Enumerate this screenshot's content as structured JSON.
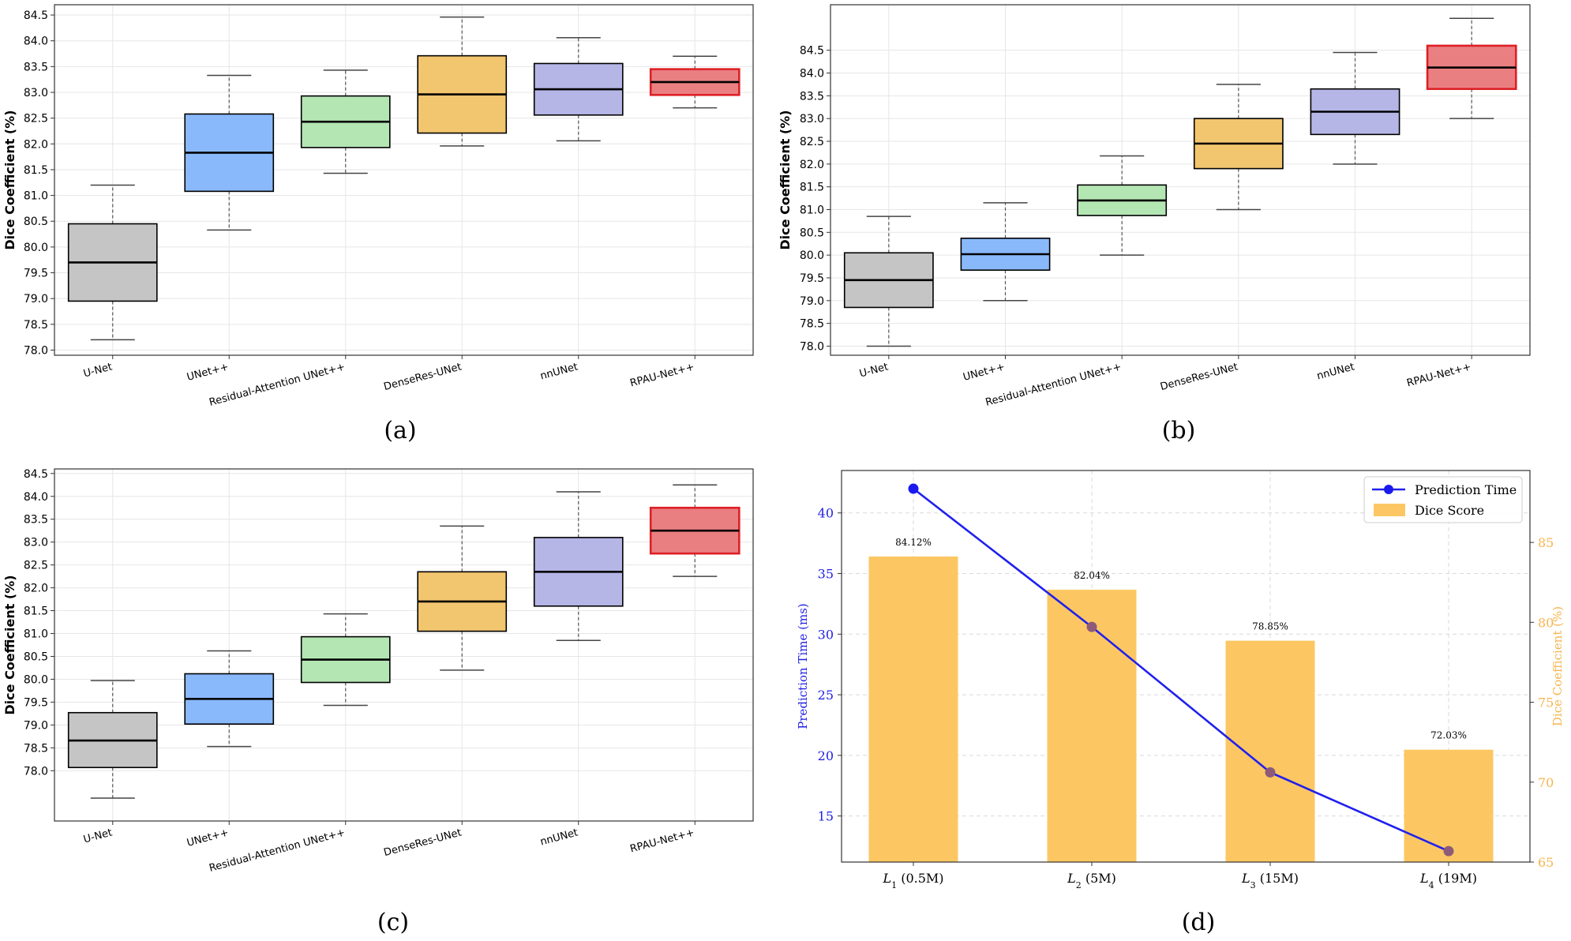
{
  "chart_data": [
    {
      "type": "box",
      "caption": "(a)",
      "ylabel": "Dice Coefficient (%)",
      "ylim": [
        77.9,
        84.7
      ],
      "yticks": [
        78.0,
        78.5,
        79.0,
        79.5,
        80.0,
        80.5,
        81.0,
        81.5,
        82.0,
        82.5,
        83.0,
        83.5,
        84.0,
        84.5
      ],
      "yticklabels": [
        "78.0",
        "78.5",
        "79.0",
        "79.5",
        "80.0",
        "80.5",
        "81.0",
        "81.5",
        "82.0",
        "82.5",
        "83.0",
        "83.5",
        "84.0",
        "84.5"
      ],
      "grid": true,
      "categories": [
        "U-Net",
        "UNet++",
        "Residual-Attention UNet++",
        "DenseRes-UNet",
        "nnUNet",
        "RPAU-Net++"
      ],
      "boxes": [
        {
          "whislo": 78.2,
          "q1": 78.95,
          "med": 79.7,
          "q3": 80.45,
          "whishi": 81.2
        },
        {
          "whislo": 80.33,
          "q1": 81.08,
          "med": 81.83,
          "q3": 82.58,
          "whishi": 83.33
        },
        {
          "whislo": 81.43,
          "q1": 81.93,
          "med": 82.43,
          "q3": 82.93,
          "whishi": 83.43
        },
        {
          "whislo": 81.96,
          "q1": 82.21,
          "med": 82.96,
          "q3": 83.71,
          "whishi": 84.46
        },
        {
          "whislo": 82.06,
          "q1": 82.56,
          "med": 83.06,
          "q3": 83.56,
          "whishi": 84.06
        },
        {
          "whislo": 82.7,
          "q1": 82.95,
          "med": 83.2,
          "q3": 83.45,
          "whishi": 83.7
        }
      ]
    },
    {
      "type": "box",
      "caption": "(b)",
      "ylabel": "Dice Coefficient (%)",
      "ylim": [
        77.8,
        85.5
      ],
      "yticks": [
        78.0,
        78.5,
        79.0,
        79.5,
        80.0,
        80.5,
        81.0,
        81.5,
        82.0,
        82.5,
        83.0,
        83.5,
        84.0,
        84.5
      ],
      "yticklabels": [
        "78.0",
        "78.5",
        "79.0",
        "79.5",
        "80.0",
        "80.5",
        "81.0",
        "81.5",
        "82.0",
        "82.5",
        "83.0",
        "83.5",
        "84.0",
        "84.5"
      ],
      "grid": true,
      "categories": [
        "U-Net",
        "UNet++",
        "Residual-Attention UNet++",
        "DenseRes-UNet",
        "nnUNet",
        "RPAU-Net++"
      ],
      "boxes": [
        {
          "whislo": 78.0,
          "q1": 78.85,
          "med": 79.45,
          "q3": 80.05,
          "whishi": 80.85
        },
        {
          "whislo": 79.0,
          "q1": 79.67,
          "med": 80.02,
          "q3": 80.37,
          "whishi": 81.15
        },
        {
          "whislo": 80.0,
          "q1": 80.87,
          "med": 81.2,
          "q3": 81.54,
          "whishi": 82.18
        },
        {
          "whislo": 81.0,
          "q1": 81.9,
          "med": 82.45,
          "q3": 83.0,
          "whishi": 83.75
        },
        {
          "whislo": 82.0,
          "q1": 82.65,
          "med": 83.15,
          "q3": 83.65,
          "whishi": 84.45
        },
        {
          "whislo": 83.0,
          "q1": 83.65,
          "med": 84.12,
          "q3": 84.6,
          "whishi": 85.2
        }
      ]
    },
    {
      "type": "box",
      "caption": "(c)",
      "ylabel": "Dice Coefficient (%)",
      "ylim": [
        76.9,
        84.6
      ],
      "yticks": [
        78.0,
        78.5,
        79.0,
        79.5,
        80.0,
        80.5,
        81.0,
        81.5,
        82.0,
        82.5,
        83.0,
        83.5,
        84.0,
        84.5
      ],
      "yticklabels": [
        "78.0",
        "78.5",
        "79.0",
        "79.5",
        "80.0",
        "80.5",
        "81.0",
        "81.5",
        "82.0",
        "82.5",
        "83.0",
        "83.5",
        "84.0",
        "84.5"
      ],
      "grid": true,
      "categories": [
        "U-Net",
        "UNet++",
        "Residual-Attention UNet++",
        "DenseRes-UNet",
        "nnUNet",
        "RPAU-Net++"
      ],
      "boxes": [
        {
          "whislo": 77.4,
          "q1": 78.07,
          "med": 78.66,
          "q3": 79.27,
          "whishi": 79.97
        },
        {
          "whislo": 78.53,
          "q1": 79.02,
          "med": 79.57,
          "q3": 80.12,
          "whishi": 80.62
        },
        {
          "whislo": 79.43,
          "q1": 79.93,
          "med": 80.43,
          "q3": 80.93,
          "whishi": 81.43
        },
        {
          "whislo": 80.2,
          "q1": 81.05,
          "med": 81.7,
          "q3": 82.35,
          "whishi": 83.35
        },
        {
          "whislo": 80.85,
          "q1": 81.6,
          "med": 82.35,
          "q3": 83.1,
          "whishi": 84.1
        },
        {
          "whislo": 82.25,
          "q1": 82.75,
          "med": 83.25,
          "q3": 83.75,
          "whishi": 84.25
        }
      ]
    },
    {
      "type": "bar+line",
      "caption": "(d)",
      "categories": [
        {
          "base": "L",
          "sub": "1",
          "rest": " (0.5M)"
        },
        {
          "base": "L",
          "sub": "2",
          "rest": " (5M)"
        },
        {
          "base": "L",
          "sub": "3",
          "rest": " (15M)"
        },
        {
          "base": "L",
          "sub": "4",
          "rest": " (19M)"
        }
      ],
      "ylabel_left": "Prediction Time (ms)",
      "ylabel_right": "Dice Coefficient (%)",
      "ylim_left": [
        11.2,
        43.5
      ],
      "ylim_right": [
        65,
        89.5
      ],
      "yticks_left": [
        15,
        20,
        25,
        30,
        35,
        40
      ],
      "yticks_right": [
        65,
        70,
        75,
        80,
        85
      ],
      "grid": true,
      "legend": {
        "position": "top-right",
        "entries": [
          "Prediction Time",
          "Dice Score"
        ]
      },
      "series": [
        {
          "name": "Prediction Time",
          "axis": "left",
          "type": "line",
          "values": [
            42.0,
            30.6,
            18.6,
            12.1
          ]
        },
        {
          "name": "Dice Score",
          "axis": "right",
          "type": "bar",
          "values": [
            84.12,
            82.04,
            78.85,
            72.03
          ],
          "labels": [
            "84.12%",
            "82.04%",
            "78.85%",
            "72.03%"
          ]
        }
      ]
    }
  ],
  "colors": {
    "boxes": [
      "#c5c5c5",
      "#89b9fa",
      "#b4e6b4",
      "#f2c56f",
      "#b5b5e6",
      "#ea7f82"
    ],
    "box_edges": [
      "#000000",
      "#000000",
      "#000000",
      "#000000",
      "#000000",
      "#dd2025"
    ],
    "bar": "#fcc763",
    "line": "#2020ee",
    "marker": "#1a1aee",
    "marker_dim": "#8e5a78",
    "left_axis_text": "#1f1fe6",
    "right_axis_text": "#f6b550"
  }
}
